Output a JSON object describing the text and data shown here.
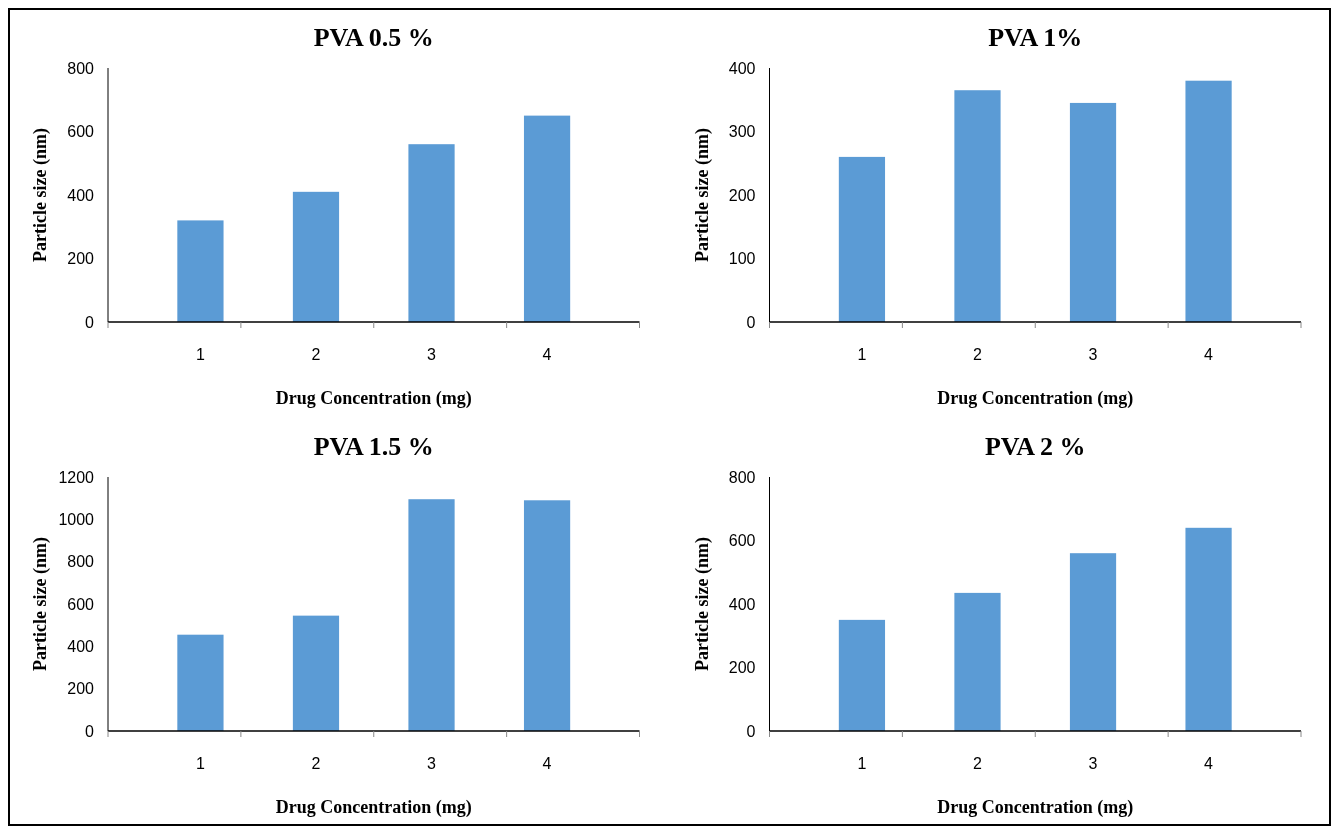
{
  "chart_data": [
    {
      "type": "bar",
      "title": "PVA 0.5 %",
      "xlabel": "Drug Concentration (mg)",
      "ylabel": "Particle size (nm)",
      "categories": [
        "1",
        "2",
        "3",
        "4"
      ],
      "values": [
        320,
        410,
        560,
        650
      ],
      "color": "#5b9bd5",
      "ylim": [
        0,
        800
      ],
      "yticks": [
        0,
        200,
        400,
        600,
        800
      ],
      "grid": false
    },
    {
      "type": "bar",
      "title": "PVA 1%",
      "xlabel": "Drug Concentration (mg)",
      "ylabel": "Particle size (nm)",
      "categories": [
        "1",
        "2",
        "3",
        "4"
      ],
      "values": [
        260,
        365,
        345,
        380
      ],
      "color": "#5b9bd5",
      "ylim": [
        0,
        400
      ],
      "yticks": [
        0,
        100,
        200,
        300,
        400
      ],
      "grid": false
    },
    {
      "type": "bar",
      "title": "PVA 1.5 %",
      "xlabel": "Drug Concentration (mg)",
      "ylabel": "Particle size (nm)",
      "categories": [
        "1",
        "2",
        "3",
        "4"
      ],
      "values": [
        455,
        545,
        1095,
        1090
      ],
      "color": "#5b9bd5",
      "ylim": [
        0,
        1200
      ],
      "yticks": [
        0,
        200,
        400,
        600,
        800,
        1000,
        1200
      ],
      "grid": false
    },
    {
      "type": "bar",
      "title": "PVA 2 %",
      "xlabel": "Drug Concentration (mg)",
      "ylabel": "Particle size (nm)",
      "categories": [
        "1",
        "2",
        "3",
        "4"
      ],
      "values": [
        350,
        435,
        560,
        640
      ],
      "color": "#5b9bd5",
      "ylim": [
        0,
        800
      ],
      "yticks": [
        0,
        200,
        400,
        600,
        800
      ],
      "grid": false
    }
  ]
}
